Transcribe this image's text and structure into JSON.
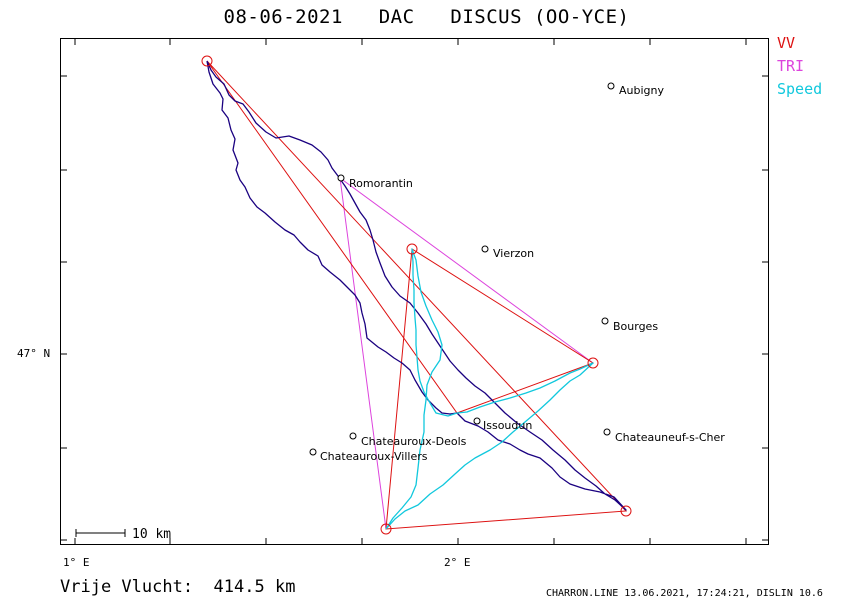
{
  "title": {
    "date": "08-06-2021",
    "code": "DAC",
    "glider": "DISCUS (OO-YCE)"
  },
  "legend": [
    {
      "label": "VV",
      "color": "#dd1111"
    },
    {
      "label": "TRI",
      "color": "#dd44dd"
    },
    {
      "label": "Speed",
      "color": "#11c8dd"
    }
  ],
  "colors": {
    "track": "#1a0080",
    "speed": "#11c8dd",
    "vv": "#dd1111",
    "tri": "#dd44dd",
    "frame": "#000000"
  },
  "axes": {
    "lon_labels": [
      "1° E",
      "2° E"
    ],
    "lat_labels": [
      "47° N"
    ]
  },
  "cities": [
    {
      "name": "Aubigny"
    },
    {
      "name": "Romorantin"
    },
    {
      "name": "Vierzon"
    },
    {
      "name": "Bourges"
    },
    {
      "name": "Issoudun"
    },
    {
      "name": "Chateauroux-Deols"
    },
    {
      "name": "Chateauroux-Villers"
    },
    {
      "name": "Chateauneuf-s-Cher"
    }
  ],
  "scale": {
    "label": "10 km"
  },
  "footer": {
    "distance_label": "Vrije Vlucht:",
    "distance_value": "414.5 km",
    "info": "CHARRON.LINE 13.06.2021, 17:24:21, DISLIN 10.6"
  }
}
